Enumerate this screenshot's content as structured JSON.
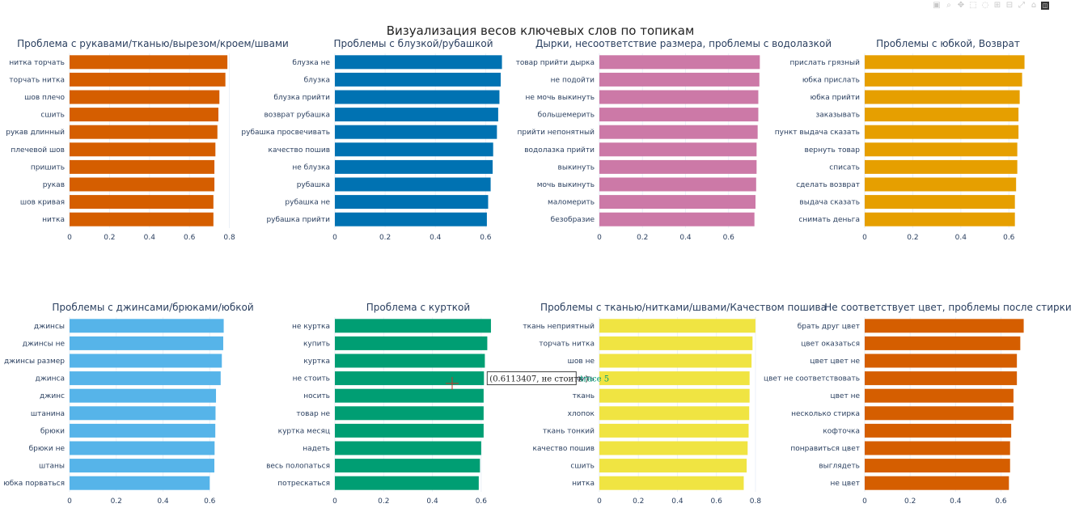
{
  "title": "Визуализация весов ключевых слов по топикам",
  "toolbar": {
    "icons": [
      "camera-icon",
      "zoom-icon",
      "pan-icon",
      "box-select-icon",
      "lasso-select-icon",
      "zoom-in-icon",
      "zoom-out-icon",
      "autoscale-icon",
      "reset-axes-icon",
      "plotly-logo"
    ]
  },
  "hover": {
    "label": "(0.6113407, не стоить  )",
    "trace": "trace 5"
  },
  "chart_data": [
    {
      "type": "bar",
      "orientation": "h",
      "title": "Проблема с рукавами/тканью/вырезом/кроем/швами",
      "color": "#D55E00",
      "xlim": [
        0,
        0.83
      ],
      "ticks": [
        0,
        0.2,
        0.4,
        0.6,
        0.8
      ],
      "tick_labels": [
        "0",
        "0.2",
        "0.4",
        "0.6",
        "0.8"
      ],
      "categories": [
        "нитка торчать",
        "торчать нитка",
        "шов плечо",
        "сшить",
        "рукав длинный",
        "плечевой шов",
        "пришить",
        "рукав",
        "шов кривая",
        "нитка"
      ],
      "values": [
        0.79,
        0.78,
        0.75,
        0.745,
        0.74,
        0.73,
        0.725,
        0.725,
        0.72,
        0.72
      ]
    },
    {
      "type": "bar",
      "orientation": "h",
      "title": "Проблемы с блузкой/рубашкой",
      "color": "#0072B2",
      "xlim": [
        0,
        0.66
      ],
      "ticks": [
        0,
        0.2,
        0.4,
        0.6
      ],
      "tick_labels": [
        "0",
        "0.2",
        "0.4",
        "0.6"
      ],
      "categories": [
        "блузка не",
        "блузка",
        "блузка прийти",
        "возврат рубашка",
        "рубашка просвечивать",
        "качество пошив",
        "не блузка",
        "рубашка",
        "рубашка не",
        "рубашка прийти"
      ],
      "values": [
        0.665,
        0.66,
        0.655,
        0.65,
        0.645,
        0.63,
        0.628,
        0.62,
        0.61,
        0.605
      ]
    },
    {
      "type": "bar",
      "orientation": "h",
      "title": "Дырки, несоответствие размера, проблемы с водолазкой",
      "color": "#CC79A7",
      "xlim": [
        0,
        0.77
      ],
      "ticks": [
        0,
        0.2,
        0.4,
        0.6
      ],
      "tick_labels": [
        "0",
        "0.2",
        "0.4",
        "0.6"
      ],
      "categories": [
        "товар прийти дырка",
        "не подойти",
        "не мочь выкинуть",
        "большемерить",
        "прийти непонятный",
        "водолазка прийти",
        "выкинуть",
        "мочь выкинуть",
        "маломерить",
        "безобразие"
      ],
      "values": [
        0.745,
        0.743,
        0.738,
        0.738,
        0.735,
        0.73,
        0.73,
        0.728,
        0.725,
        0.72
      ]
    },
    {
      "type": "bar",
      "orientation": "h",
      "title": "Проблемы с юбкой, Возврат",
      "color": "#E69F00",
      "xlim": [
        0,
        0.69
      ],
      "ticks": [
        0,
        0.2,
        0.4,
        0.6
      ],
      "tick_labels": [
        "0",
        "0.2",
        "0.4",
        "0.6"
      ],
      "categories": [
        "прислать грязный",
        "юбка прислать",
        "юбка прийти",
        "заказывать",
        "пункт выдача сказать",
        "вернуть товар",
        "списать",
        "сделать возврат",
        "выдача сказать",
        "снимать деньга"
      ],
      "values": [
        0.665,
        0.655,
        0.645,
        0.64,
        0.64,
        0.635,
        0.635,
        0.63,
        0.625,
        0.625
      ]
    },
    {
      "type": "bar",
      "orientation": "h",
      "title": "Проблемы с джинсами/брюками/юбкой",
      "color": "#56B4E9",
      "xlim": [
        0,
        0.71
      ],
      "ticks": [
        0,
        0.2,
        0.4,
        0.6
      ],
      "tick_labels": [
        "0",
        "0.2",
        "0.4",
        "0.6"
      ],
      "categories": [
        "джинсы",
        "джинсы не",
        "джинсы размер",
        "джинса",
        "джинс",
        "штанина",
        "брюки",
        "брюки не",
        "штаны",
        "юбка порваться"
      ],
      "values": [
        0.66,
        0.658,
        0.652,
        0.647,
        0.627,
        0.625,
        0.624,
        0.621,
        0.62,
        0.6
      ]
    },
    {
      "type": "bar",
      "orientation": "h",
      "title": "Проблема с курткой",
      "color": "#009E73",
      "xlim": [
        0,
        0.68
      ],
      "ticks": [
        0,
        0.2,
        0.4,
        0.6
      ],
      "tick_labels": [
        "0",
        "0.2",
        "0.4",
        "0.6"
      ],
      "categories": [
        "не куртка",
        "купить",
        "куртка",
        "не стоить",
        "носить",
        "товар не",
        "куртка месяц",
        "надеть",
        "весь полопаться",
        "потрескаться"
      ],
      "values": [
        0.64,
        0.625,
        0.615,
        0.6113407,
        0.61,
        0.61,
        0.61,
        0.6,
        0.595,
        0.59
      ]
    },
    {
      "type": "bar",
      "orientation": "h",
      "title": "Проблемы с тканью/нитками/швами/Качеством пошива",
      "color": "#F0E442",
      "xlim": [
        0,
        0.85
      ],
      "ticks": [
        0,
        0.2,
        0.4,
        0.6,
        0.8
      ],
      "tick_labels": [
        "0",
        "0.2",
        "0.4",
        "0.6",
        "0.8"
      ],
      "categories": [
        "ткань неприятный",
        "торчать нитка",
        "шов не",
        "не стоить",
        "ткань",
        "хлопок",
        "ткань тонкий",
        "качество пошив",
        "сшить",
        "нитка"
      ],
      "values": [
        0.8,
        0.785,
        0.78,
        0.77,
        0.77,
        0.768,
        0.765,
        0.76,
        0.755,
        0.74
      ]
    },
    {
      "type": "bar",
      "orientation": "h",
      "title": "Не соответствует цвет, проблемы после стирки",
      "color": "#D55E00",
      "xlim": [
        0,
        0.73
      ],
      "ticks": [
        0,
        0.2,
        0.4,
        0.6
      ],
      "tick_labels": [
        "0",
        "0.2",
        "0.4",
        "0.6"
      ],
      "categories": [
        "брать друг цвет",
        "цвет оказаться",
        "цвет цвет не",
        "цвет не соответствовать",
        "цвет не",
        "несколько стирка",
        "кофточка",
        "понравиться цвет",
        "выглядеть",
        "не цвет"
      ],
      "values": [
        0.7,
        0.685,
        0.67,
        0.67,
        0.655,
        0.655,
        0.645,
        0.64,
        0.64,
        0.635
      ]
    }
  ]
}
